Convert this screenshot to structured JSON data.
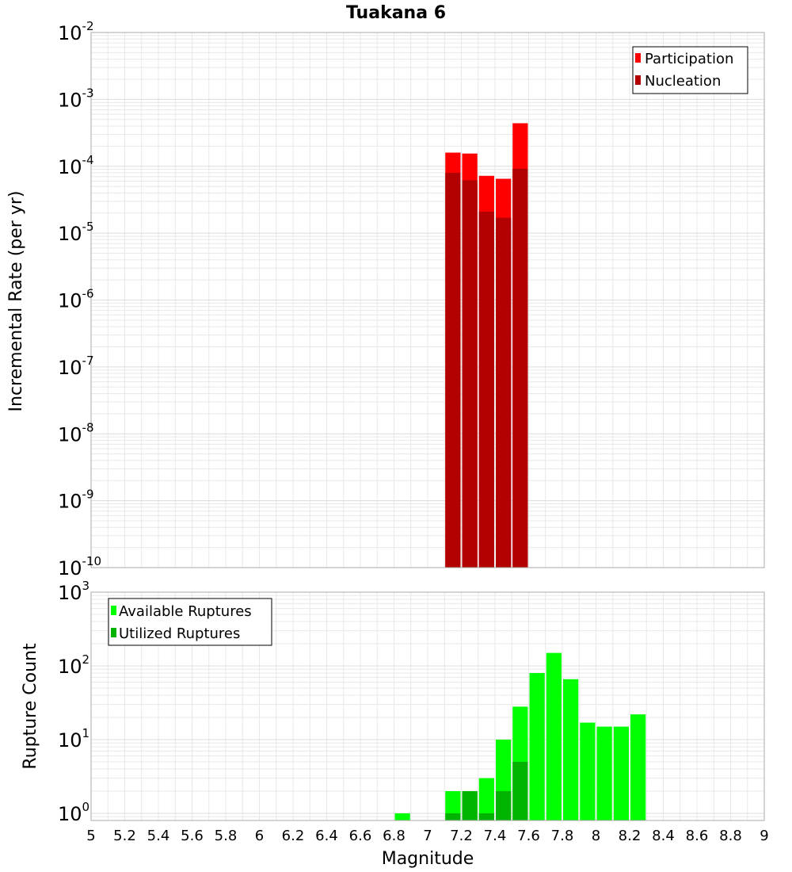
{
  "title": "Tuakana 6",
  "colors": {
    "participation": "#ff0000",
    "nucleation": "#b30000",
    "available": "#00ff00",
    "utilized": "#00b300",
    "grid": "#e8e8e8",
    "frame": "#aaaaaa"
  },
  "chart_data": [
    {
      "type": "bar",
      "panel": "top",
      "xlabel": "",
      "ylabel": "Incremental Rate (per yr)",
      "xlim": [
        5,
        9
      ],
      "ylim": [
        1e-10,
        0.01
      ],
      "yscale": "log",
      "y_tick_exponents": [
        -10,
        -9,
        -8,
        -7,
        -6,
        -5,
        -4,
        -3,
        -2
      ],
      "bar_width": 0.1,
      "legend_position": "top-right",
      "grid": true,
      "x": [
        7.15,
        7.25,
        7.35,
        7.45,
        7.55
      ],
      "series": [
        {
          "name": "Participation",
          "color_key": "participation",
          "values": [
            0.00016,
            0.000155,
            7.2e-05,
            6.5e-05,
            0.00044
          ]
        },
        {
          "name": "Nucleation",
          "color_key": "nucleation",
          "values": [
            8e-05,
            6.2e-05,
            2.1e-05,
            1.7e-05,
            9.2e-05
          ]
        }
      ]
    },
    {
      "type": "bar",
      "panel": "bottom",
      "xlabel": "Magnitude",
      "ylabel": "Rupture Count",
      "xlim": [
        5,
        9
      ],
      "ylim": [
        0.8,
        1000
      ],
      "yscale": "log",
      "y_tick_exponents": [
        0,
        1,
        2,
        3
      ],
      "x_ticks": [
        "5",
        "5.2",
        "5.4",
        "5.6",
        "5.8",
        "6",
        "6.2",
        "6.4",
        "6.6",
        "6.8",
        "7",
        "7.2",
        "7.4",
        "7.6",
        "7.8",
        "8",
        "8.2",
        "8.4",
        "8.6",
        "8.8",
        "9"
      ],
      "bar_width": 0.1,
      "legend_position": "top-left",
      "grid": true,
      "series": [
        {
          "name": "Available Ruptures",
          "color_key": "available",
          "x": [
            6.85,
            7.15,
            7.25,
            7.35,
            7.45,
            7.55,
            7.65,
            7.75,
            7.85,
            7.95,
            8.05,
            8.15,
            8.25
          ],
          "values": [
            1,
            2,
            2,
            3,
            10,
            28,
            80,
            150,
            66,
            17,
            15,
            15,
            22
          ]
        },
        {
          "name": "Utilized Ruptures",
          "color_key": "utilized",
          "x": [
            7.15,
            7.25,
            7.35,
            7.45,
            7.55
          ],
          "values": [
            1,
            2,
            1,
            2,
            5
          ]
        }
      ]
    }
  ]
}
